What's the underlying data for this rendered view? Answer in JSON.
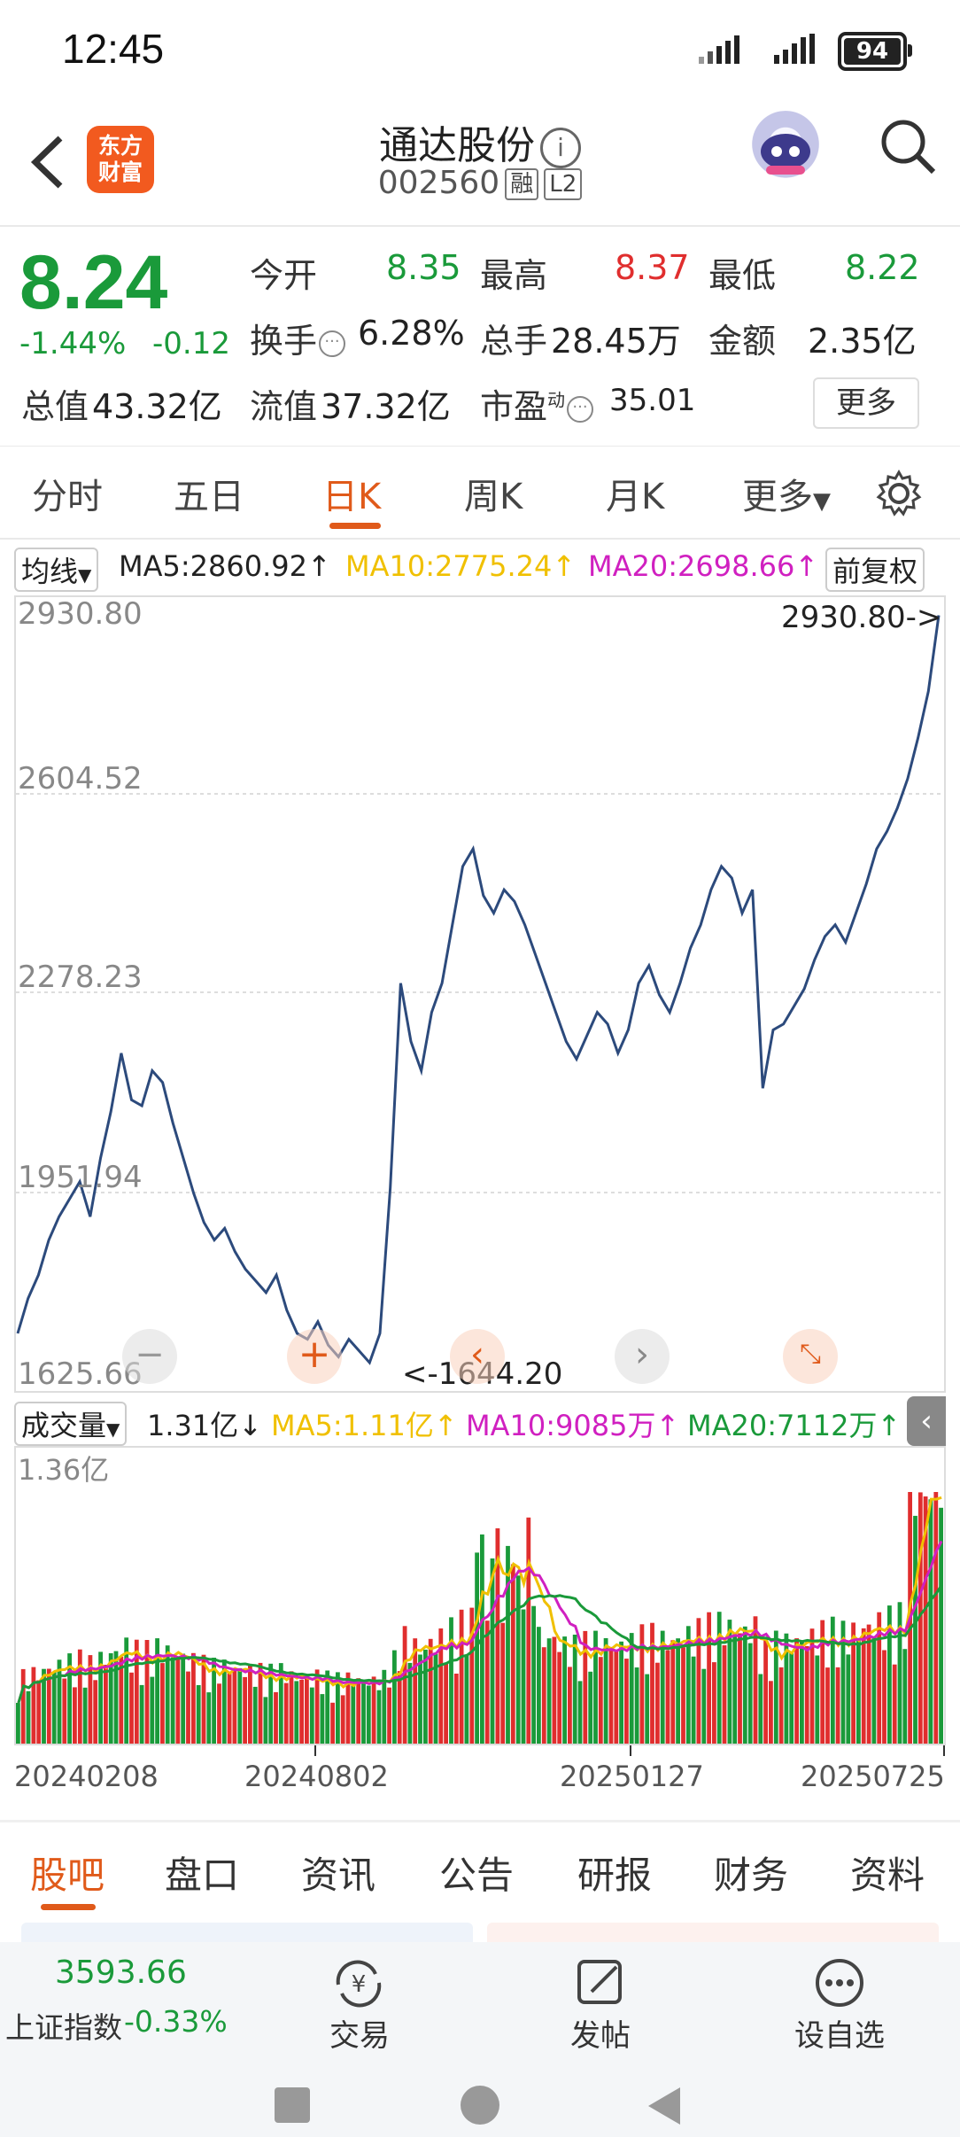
{
  "status": {
    "time": "12:45",
    "battery": "94"
  },
  "header": {
    "logo_line1": "东方",
    "logo_line2": "财富",
    "stock_name": "通达股份",
    "code": "002560",
    "tag_margin": "融",
    "tag_level": "L2"
  },
  "quote": {
    "price": "8.24",
    "change_pct": "-1.44%",
    "change": "-0.12",
    "items": [
      {
        "label": "今开",
        "value": "8.35"
      },
      {
        "label": "最高",
        "value": "8.37"
      },
      {
        "label": "最低",
        "value": "8.22"
      },
      {
        "label": "换手",
        "value": "6.28%"
      },
      {
        "label": "总手",
        "value": "28.45万"
      },
      {
        "label": "金额",
        "value": "2.35亿"
      },
      {
        "label": "总值",
        "value": "43.32亿"
      },
      {
        "label": "流值",
        "value": "37.32亿"
      },
      {
        "label": "市盈",
        "value": "35.01",
        "sup": "动"
      }
    ],
    "more": "更多"
  },
  "tabs": [
    "分时",
    "五日",
    "日K",
    "周K",
    "月K",
    "更多"
  ],
  "ma_row": {
    "selector": "均线",
    "ma5": "MA5:2860.92",
    "ma10": "MA10:2775.24",
    "ma20": "MA20:2698.66",
    "adjust": "前复权"
  },
  "price_chart": {
    "y_labels": [
      "2930.80",
      "2604.52",
      "2278.23",
      "1951.94",
      "1625.66"
    ],
    "max_label": "2930.80->",
    "min_label": "<-1644.20"
  },
  "vol_row": {
    "selector": "成交量",
    "vol": "1.31亿",
    "ma5": "MA5:1.11亿",
    "ma10": "MA10:9085万",
    "ma20": "MA20:7112万"
  },
  "vol_chart": {
    "y_label": "1.36亿"
  },
  "x_labels": [
    "20240208",
    "20240802",
    "20250127",
    "20250725"
  ],
  "bottom_tabs": [
    "股吧",
    "盘口",
    "资讯",
    "公告",
    "研报",
    "财务",
    "资料"
  ],
  "footer": {
    "index_value": "3593.66",
    "index_name": "上证指数",
    "index_change": "-0.33%",
    "trade": "交易",
    "post": "发帖",
    "watch": "设自选",
    "yen": "¥"
  },
  "colors": {
    "up": "#e02e2e",
    "down": "#1a9a3a",
    "ma5": "#f0c000",
    "ma10": "#d020c0",
    "ma20": "#1a9a3a",
    "accent": "#e05a1a"
  },
  "chart_data": {
    "type": "line",
    "title": "",
    "ylim": [
      1625.66,
      2930.8
    ],
    "max": 2930.8,
    "min": 1644.2,
    "x_ticks": [
      "20240208",
      "20240802",
      "20250127",
      "20250725"
    ],
    "price_series": [
      1700,
      1760,
      1800,
      1860,
      1900,
      1930,
      1960,
      1900,
      2000,
      2080,
      2180,
      2100,
      2090,
      2150,
      2130,
      2060,
      2000,
      1940,
      1890,
      1860,
      1880,
      1840,
      1810,
      1790,
      1770,
      1800,
      1740,
      1700,
      1690,
      1720,
      1680,
      1660,
      1690,
      1670,
      1650,
      1700,
      1950,
      2300,
      2200,
      2150,
      2250,
      2300,
      2400,
      2500,
      2530,
      2450,
      2420,
      2460,
      2440,
      2400,
      2350,
      2300,
      2250,
      2200,
      2170,
      2210,
      2250,
      2230,
      2180,
      2220,
      2300,
      2330,
      2280,
      2250,
      2300,
      2360,
      2400,
      2460,
      2500,
      2480,
      2420,
      2460,
      2120,
      2220,
      2230,
      2260,
      2290,
      2340,
      2380,
      2400,
      2370,
      2420,
      2470,
      2530,
      2560,
      2600,
      2650,
      2720,
      2800,
      2930
    ]
  }
}
